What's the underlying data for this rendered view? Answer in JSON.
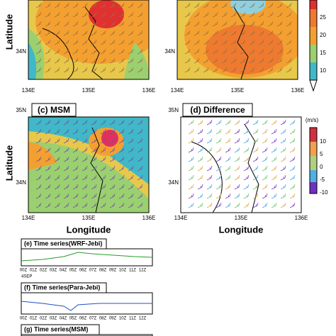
{
  "axis_labels": {
    "latitude": "Latitude",
    "longitude": "Longitude"
  },
  "panels": [
    {
      "lat_ticks": [
        "34N"
      ],
      "lon_ticks": [
        "134E",
        "135E",
        "136E"
      ]
    },
    {
      "lat_ticks": [
        "34N"
      ],
      "lon_ticks": [
        "134E",
        "135E",
        "136E"
      ]
    },
    {
      "title": "(c) MSM",
      "lat_ticks": [
        "35N",
        "34N"
      ],
      "lon_ticks": [
        "134E",
        "135E",
        "136E"
      ]
    },
    {
      "title": "(d) Difference",
      "lat_ticks": [
        "35N",
        "34N"
      ],
      "lon_ticks": [
        "134E",
        "135E",
        "136E"
      ]
    }
  ],
  "colorbar_speed": {
    "ticks": [
      25,
      20,
      15,
      10
    ]
  },
  "colorbar_difference": {
    "unit": "(m/s)",
    "ticks": [
      10,
      5,
      0,
      -5,
      -10
    ]
  },
  "time_series": [
    {
      "title": "(e) Time series(WRF-Jebi)"
    },
    {
      "title": "(f) Time series(Para-Jebi)"
    },
    {
      "title": "(g) Time series(MSM)"
    }
  ],
  "time_ticks": [
    "00Z",
    "01Z",
    "02Z",
    "03Z",
    "04Z",
    "05Z",
    "06Z",
    "07Z",
    "08Z",
    "09Z",
    "10Z",
    "11Z",
    "12Z"
  ],
  "date": "4SEP"
}
